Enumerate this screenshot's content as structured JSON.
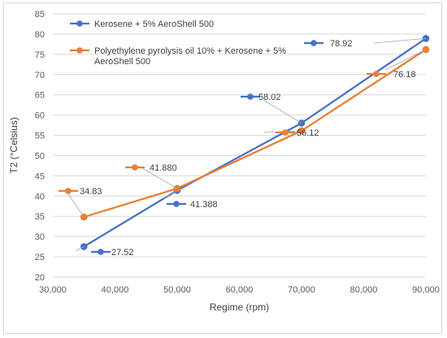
{
  "chart_data": {
    "type": "line",
    "title": "",
    "xlabel": "Regime (rpm)",
    "ylabel": "T2 (°Celsius)",
    "xlim": [
      30000,
      90000
    ],
    "ylim": [
      20,
      85
    ],
    "xticks": [
      30000,
      40000,
      50000,
      60000,
      70000,
      80000,
      90000
    ],
    "xtick_labels": [
      "30,000",
      "40,000",
      "50,000",
      "60,000",
      "70,000",
      "80,000",
      "90,000"
    ],
    "yticks": [
      20,
      25,
      30,
      35,
      40,
      45,
      50,
      55,
      60,
      65,
      70,
      75,
      80,
      85
    ],
    "grid": "horizontal",
    "legend": "top-left, inside plot",
    "series": [
      {
        "name": "Kerosene + 5% AeroShell 500",
        "color": "#4472C4",
        "x": [
          35000,
          50000,
          70000,
          90000
        ],
        "y": [
          27.52,
          41.388,
          58.02,
          78.92
        ],
        "labels": [
          "27.52",
          "41.388",
          "58.02",
          "78.92"
        ]
      },
      {
        "name": "Polyethylene pyrolysis oil 10% + Kerosene + 5% AeroShell 500",
        "name_lines": [
          "Polyethylene pyrolysis oil 10% + Kerosene + 5%",
          "AeroShell 500"
        ],
        "color": "#ED7D31",
        "x": [
          35000,
          50000,
          70000,
          90000
        ],
        "y": [
          34.83,
          41.88,
          56.12,
          76.18
        ],
        "labels": [
          "34.83",
          "41.880",
          "56.12",
          "76.18"
        ]
      }
    ]
  }
}
